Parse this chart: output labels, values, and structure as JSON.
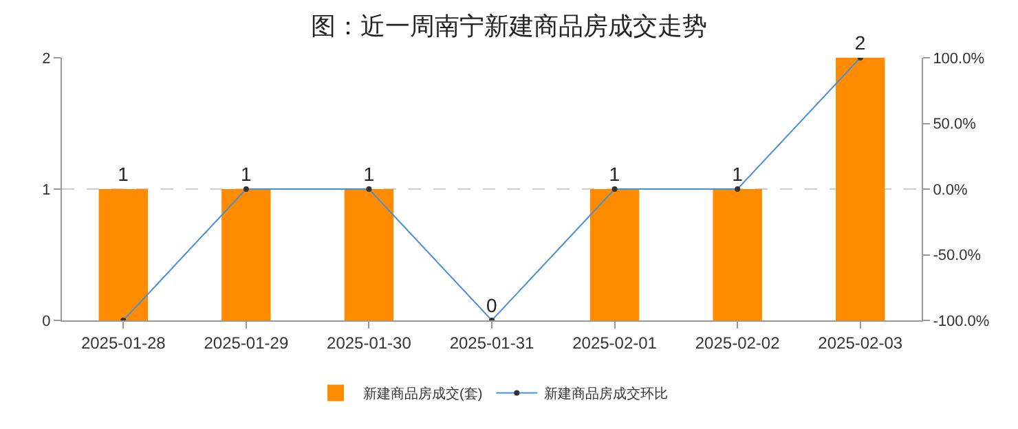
{
  "chart_data": {
    "type": "bar",
    "title": "图：近一周南宁新建商品房成交走势",
    "categories": [
      "2025-01-28",
      "2025-01-29",
      "2025-01-30",
      "2025-01-31",
      "2025-02-01",
      "2025-02-02",
      "2025-02-03"
    ],
    "series": [
      {
        "name": "新建商品房成交(套)",
        "color": "#ff8c00",
        "values": [
          1,
          1,
          1,
          0,
          1,
          1,
          2
        ],
        "data_labels": true
      },
      {
        "name": "新建商品房成交环比",
        "type": "line",
        "axis": "y2",
        "color": "#4a8fd6",
        "values": [
          -100,
          0,
          0,
          -100,
          0,
          0,
          100
        ],
        "marker": "circle"
      }
    ],
    "ylim": [
      0,
      2
    ],
    "yticks": [
      0,
      1,
      2
    ],
    "y2lim": [
      -100,
      100
    ],
    "y2ticks": [
      {
        "value": -100,
        "label": "-100.0%"
      },
      {
        "value": -50,
        "label": "-50.0%"
      },
      {
        "value": 0,
        "label": "0.0%"
      },
      {
        "value": 50,
        "label": "50.0%"
      },
      {
        "value": 100,
        "label": "100.0%"
      }
    ],
    "grid": "y",
    "legend": "bottom"
  }
}
